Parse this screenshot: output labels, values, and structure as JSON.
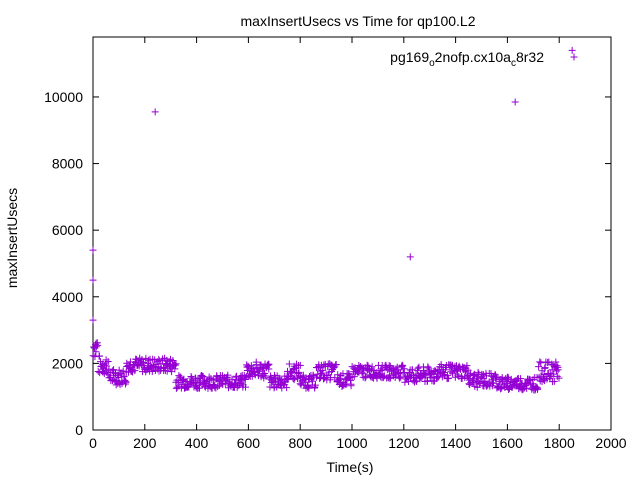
{
  "chart_data": {
    "type": "scatter",
    "title": "maxInsertUsecs vs Time for qp100.L2",
    "xlabel": "Time(s)",
    "ylabel": "maxInsertUsecs",
    "xlim": [
      0,
      2000
    ],
    "ylim": [
      0,
      11800
    ],
    "xticks": [
      "0",
      "200",
      "400",
      "600",
      "800",
      "1000",
      "1200",
      "1400",
      "1600",
      "1800",
      "2000"
    ],
    "yticks": [
      "0",
      "2000",
      "4000",
      "6000",
      "8000",
      "10000"
    ],
    "grid": false,
    "legend_position": "top-right",
    "marker": "+",
    "series": [
      {
        "name": "pg169_o2nofp.cx10a_c8r32",
        "name_parts": {
          "a": "pg169",
          "b": "o",
          "c": "2nofp.cx10a",
          "d": "c",
          "e": "8r32"
        },
        "color": "#9400d3",
        "outliers": [
          [
            0,
            5400
          ],
          [
            0,
            4500
          ],
          [
            0,
            3300
          ],
          [
            240,
            9550
          ],
          [
            1225,
            5200
          ],
          [
            1630,
            9850
          ],
          [
            1850,
            11400
          ]
        ],
        "segments": [
          {
            "x0": 0,
            "x1": 20,
            "mean": 2500,
            "spread": 350
          },
          {
            "x0": 20,
            "x1": 60,
            "mean": 1950,
            "spread": 300
          },
          {
            "x0": 60,
            "x1": 130,
            "mean": 1600,
            "spread": 250
          },
          {
            "x0": 130,
            "x1": 320,
            "mean": 1950,
            "spread": 220
          },
          {
            "x0": 320,
            "x1": 590,
            "mean": 1450,
            "spread": 200
          },
          {
            "x0": 590,
            "x1": 680,
            "mean": 1800,
            "spread": 250
          },
          {
            "x0": 680,
            "x1": 750,
            "mean": 1450,
            "spread": 200
          },
          {
            "x0": 750,
            "x1": 800,
            "mean": 1750,
            "spread": 250
          },
          {
            "x0": 800,
            "x1": 860,
            "mean": 1450,
            "spread": 200
          },
          {
            "x0": 860,
            "x1": 940,
            "mean": 1750,
            "spread": 250
          },
          {
            "x0": 940,
            "x1": 1000,
            "mean": 1500,
            "spread": 200
          },
          {
            "x0": 1000,
            "x1": 1200,
            "mean": 1750,
            "spread": 200
          },
          {
            "x0": 1200,
            "x1": 1320,
            "mean": 1650,
            "spread": 250
          },
          {
            "x0": 1320,
            "x1": 1450,
            "mean": 1750,
            "spread": 220
          },
          {
            "x0": 1450,
            "x1": 1560,
            "mean": 1500,
            "spread": 230
          },
          {
            "x0": 1560,
            "x1": 1720,
            "mean": 1400,
            "spread": 200
          },
          {
            "x0": 1720,
            "x1": 1800,
            "mean": 1750,
            "spread": 300
          }
        ]
      }
    ]
  }
}
